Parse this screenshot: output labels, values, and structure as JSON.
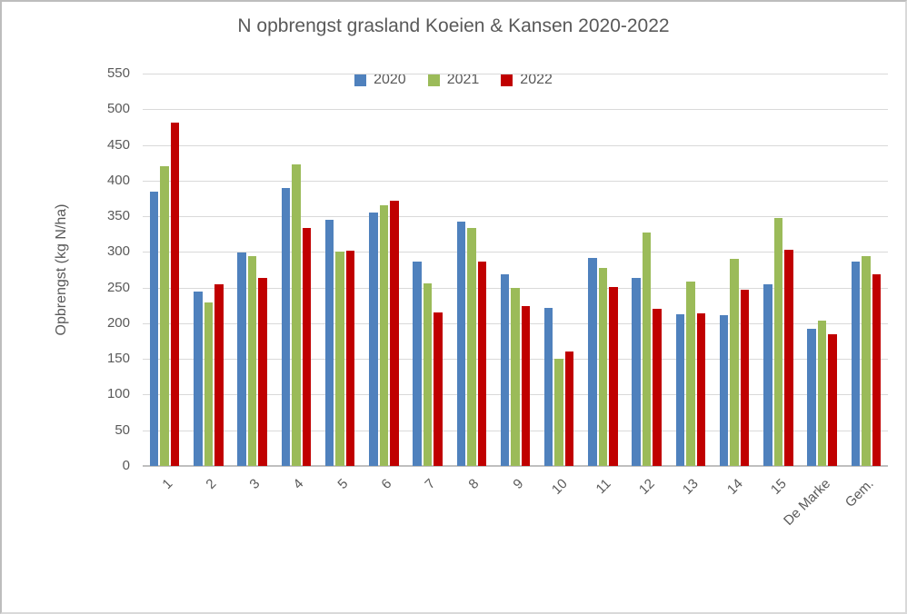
{
  "chart_data": {
    "type": "bar",
    "title": "N opbrengst grasland Koeien & Kansen 2020-2022",
    "xlabel": "",
    "ylabel": "Opbrengst (kg N/ha)",
    "ylim": [
      0,
      550
    ],
    "ytick_step": 50,
    "grid": true,
    "legend_position": "top-center",
    "categories": [
      "1",
      "2",
      "3",
      "4",
      "5",
      "6",
      "7",
      "8",
      "9",
      "10",
      "11",
      "12",
      "13",
      "14",
      "15",
      "De Marke",
      "Gem."
    ],
    "series": [
      {
        "name": "2020",
        "color": "#4F81BD",
        "values": [
          385,
          245,
          299,
          390,
          345,
          355,
          287,
          343,
          268,
          222,
          292,
          264,
          212,
          211,
          254,
          192,
          286
        ]
      },
      {
        "name": "2021",
        "color": "#9BBB59",
        "values": [
          420,
          229,
          294,
          423,
          300,
          365,
          256,
          333,
          249,
          150,
          278,
          327,
          258,
          290,
          347,
          204,
          294
        ]
      },
      {
        "name": "2022",
        "color": "#C00000",
        "values": [
          481,
          255,
          264,
          334,
          302,
          372,
          215,
          287,
          224,
          161,
          251,
          220,
          214,
          247,
          303,
          184,
          269
        ]
      }
    ]
  },
  "colors": {
    "text": "#595959",
    "gridline": "#D9D9D9",
    "axis_line": "#BFBFBF",
    "background": "#FFFFFF",
    "series_2020": "#4F81BD",
    "series_2021": "#9BBB59",
    "series_2022": "#C00000"
  }
}
